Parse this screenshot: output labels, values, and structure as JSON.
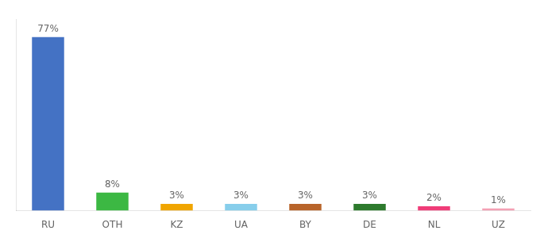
{
  "chart_data": {
    "type": "bar",
    "categories": [
      "RU",
      "OTH",
      "KZ",
      "UA",
      "BY",
      "DE",
      "NL",
      "UZ"
    ],
    "values": [
      77,
      8,
      3,
      3,
      3,
      3,
      2,
      1
    ],
    "value_labels": [
      "77%",
      "8%",
      "3%",
      "3%",
      "3%",
      "3%",
      "2%",
      "1%"
    ],
    "colors": [
      "#4472c4",
      "#3cb843",
      "#f0a500",
      "#87ceeb",
      "#b8642a",
      "#2d7a2d",
      "#f03c78",
      "#f4a0b4"
    ],
    "ylim": [
      0,
      85
    ],
    "grid": false,
    "data_labels": true,
    "tick_labels": "x"
  }
}
